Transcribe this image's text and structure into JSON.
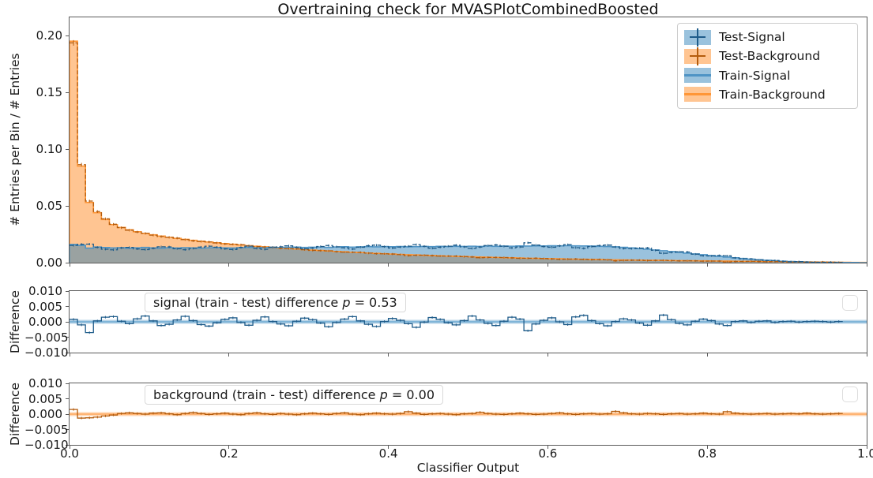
{
  "palette": {
    "blue": "#1f77b4",
    "orange": "#ff7f0e",
    "blue_fill": "rgba(31,119,180,0.45)",
    "orange_fill": "rgba(255,127,14,0.45)",
    "train_signal_edge": "#4f94c5",
    "train_background_edge": "#ff9636",
    "test_signal": "#1f5c8a",
    "test_background": "#b45c0d",
    "band_blue": "rgba(31,119,180,0.32)",
    "band_blue_line": "#6fabd4",
    "band_orange": "rgba(255,127,14,0.32)",
    "band_orange_line": "#ffa95e",
    "spine": "#5b5b5b",
    "text": "#1a1a1a"
  },
  "chart_data": {
    "type": "histogram",
    "title": "Overtraining check for MVASPlotCombinedBoosted",
    "xlabel": "Classifier Output",
    "bins": {
      "count": 100,
      "range": [
        0,
        1
      ]
    },
    "x_axis": {
      "tick_labels": [
        "0.0",
        "0.2",
        "0.4",
        "0.6",
        "0.8",
        "1.0"
      ],
      "tick_values": [
        0,
        0.2,
        0.4,
        0.6,
        0.8,
        1.0
      ],
      "lim": [
        0,
        1
      ]
    },
    "main": {
      "ylabel": "# Entries per Bin / # Entries",
      "ylim": [
        0,
        0.2159
      ],
      "ytick_labels": [
        "0.00",
        "0.05",
        "0.10",
        "0.15",
        "0.20"
      ],
      "ytick_values": [
        0,
        0.05,
        0.1,
        0.15,
        0.2
      ],
      "grid": false
    },
    "legend": {
      "position": "upper right",
      "items": [
        {
          "label": "Test-Signal",
          "swatch": "errorbar",
          "color": "blue"
        },
        {
          "label": "Test-Background",
          "swatch": "errorbar",
          "color": "orange"
        },
        {
          "label": "Train-Signal",
          "swatch": "band",
          "color": "blue"
        },
        {
          "label": "Train-Background",
          "swatch": "band",
          "color": "orange"
        }
      ]
    },
    "series": {
      "train_signal": [
        0.016,
        0.0152,
        0.0128,
        0.0138,
        0.0133,
        0.013,
        0.0132,
        0.0128,
        0.0131,
        0.0134,
        0.013,
        0.0128,
        0.0131,
        0.0129,
        0.0132,
        0.013,
        0.0128,
        0.0131,
        0.0133,
        0.013,
        0.0129,
        0.0132,
        0.0134,
        0.0131,
        0.0133,
        0.0136,
        0.0133,
        0.0135,
        0.0137,
        0.0134,
        0.0136,
        0.0138,
        0.0135,
        0.0138,
        0.014,
        0.0137,
        0.0139,
        0.0141,
        0.0139,
        0.0142,
        0.014,
        0.0142,
        0.0139,
        0.0141,
        0.0143,
        0.0141,
        0.0144,
        0.0142,
        0.0144,
        0.0143,
        0.0145,
        0.0143,
        0.0146,
        0.0144,
        0.0146,
        0.0145,
        0.0147,
        0.0146,
        0.0148,
        0.0147,
        0.0149,
        0.0148,
        0.015,
        0.0148,
        0.0147,
        0.0146,
        0.0144,
        0.0142,
        0.0139,
        0.0135,
        0.013,
        0.0124,
        0.0118,
        0.0112,
        0.0105,
        0.0098,
        0.0091,
        0.0084,
        0.0077,
        0.007,
        0.0063,
        0.0056,
        0.0049,
        0.0043,
        0.0037,
        0.0031,
        0.0026,
        0.0021,
        0.0017,
        0.0013,
        0.001,
        0.0008,
        0.0006,
        0.0004,
        0.0003,
        0.0002,
        0.0002,
        0.0001,
        0.0001,
        0.0
      ],
      "train_background": [
        0.195,
        0.085,
        0.053,
        0.044,
        0.038,
        0.0335,
        0.031,
        0.029,
        0.0272,
        0.0258,
        0.0245,
        0.0234,
        0.0224,
        0.0214,
        0.0205,
        0.0197,
        0.0189,
        0.0182,
        0.0175,
        0.0168,
        0.0162,
        0.0156,
        0.015,
        0.0145,
        0.0139,
        0.0134,
        0.0129,
        0.0124,
        0.012,
        0.0115,
        0.0111,
        0.0107,
        0.0103,
        0.0099,
        0.0096,
        0.0092,
        0.0089,
        0.0085,
        0.0082,
        0.0079,
        0.0076,
        0.0073,
        0.007,
        0.0068,
        0.0065,
        0.0063,
        0.006,
        0.0058,
        0.0056,
        0.0054,
        0.0052,
        0.005,
        0.0048,
        0.0046,
        0.0044,
        0.0043,
        0.0041,
        0.0039,
        0.0038,
        0.0036,
        0.0035,
        0.0034,
        0.0032,
        0.0031,
        0.003,
        0.0029,
        0.0028,
        0.0026,
        0.0025,
        0.0024,
        0.0023,
        0.0022,
        0.0021,
        0.0021,
        0.002,
        0.0019,
        0.0018,
        0.0017,
        0.0017,
        0.0016,
        0.0015,
        0.0014,
        0.0014,
        0.0013,
        0.0012,
        0.0012,
        0.0011,
        0.001,
        0.001,
        0.0009,
        0.0008,
        0.0008,
        0.0007,
        0.0006,
        0.0006,
        0.0005,
        0.0004,
        0.0003,
        0.0002,
        0.0002
      ],
      "test_signal": [
        0.0152,
        0.0162,
        0.0163,
        0.0135,
        0.0118,
        0.0113,
        0.013,
        0.0134,
        0.0121,
        0.0115,
        0.0127,
        0.014,
        0.0139,
        0.0123,
        0.0114,
        0.0126,
        0.0137,
        0.0145,
        0.0136,
        0.0122,
        0.0116,
        0.0134,
        0.0145,
        0.0126,
        0.0117,
        0.0135,
        0.014,
        0.0148,
        0.0135,
        0.0122,
        0.0129,
        0.0142,
        0.0151,
        0.014,
        0.0131,
        0.012,
        0.0136,
        0.0149,
        0.0154,
        0.0141,
        0.0129,
        0.0137,
        0.0145,
        0.0159,
        0.0144,
        0.0127,
        0.0136,
        0.0145,
        0.0154,
        0.0139,
        0.0126,
        0.0137,
        0.0151,
        0.0156,
        0.0144,
        0.013,
        0.0138,
        0.0175,
        0.0155,
        0.0142,
        0.0136,
        0.0148,
        0.0159,
        0.0132,
        0.0126,
        0.0142,
        0.015,
        0.0155,
        0.0138,
        0.0125,
        0.0124,
        0.0128,
        0.0129,
        0.0109,
        0.0083,
        0.0091,
        0.0096,
        0.0094,
        0.0075,
        0.0061,
        0.0059,
        0.0063,
        0.0061,
        0.0042,
        0.0034,
        0.0033,
        0.0024,
        0.0018,
        0.0019,
        0.0012,
        0.0008,
        0.0009,
        0.0005,
        0.0002,
        0.0002,
        0.0003,
        0.0001,
        0.0,
        0.0001,
        0.0
      ],
      "test_background": [
        0.1935,
        0.0863,
        0.0542,
        0.045,
        0.0386,
        0.0338,
        0.0308,
        0.0286,
        0.027,
        0.0258,
        0.0242,
        0.023,
        0.0223,
        0.0216,
        0.0203,
        0.0192,
        0.0187,
        0.0183,
        0.0174,
        0.0165,
        0.0162,
        0.0158,
        0.0148,
        0.0141,
        0.0138,
        0.0135,
        0.0127,
        0.0124,
        0.0122,
        0.0114,
        0.0108,
        0.0106,
        0.0104,
        0.0097,
        0.0092,
        0.0092,
        0.0091,
        0.0084,
        0.0079,
        0.0078,
        0.0076,
        0.0071,
        0.0062,
        0.0065,
        0.0066,
        0.0062,
        0.0058,
        0.0058,
        0.0058,
        0.0053,
        0.005,
        0.0044,
        0.0046,
        0.0046,
        0.0045,
        0.0042,
        0.0038,
        0.0038,
        0.0039,
        0.0036,
        0.0033,
        0.003,
        0.0031,
        0.0032,
        0.0029,
        0.0027,
        0.0028,
        0.0025,
        0.0016,
        0.002,
        0.0022,
        0.0022,
        0.0019,
        0.002,
        0.0021,
        0.0018,
        0.0016,
        0.0017,
        0.0016,
        0.0013,
        0.0014,
        0.0014,
        0.0006,
        0.001,
        0.0011,
        0.0012,
        0.001,
        0.0008,
        0.001,
        0.0008,
        0.0006,
        0.0007,
        0.0004,
        0.0005,
        0.0006,
        0.0004,
        0.0002,
        0.0002,
        0.0002,
        0.0001
      ]
    },
    "diff_panels": [
      {
        "id": "signal",
        "ylabel": "Difference",
        "ylim": [
          -0.01,
          0.01
        ],
        "ytick_labels": [
          "0.010",
          "0.005",
          "0.000",
          "−0.005",
          "−0.010"
        ],
        "ytick_values": [
          0.01,
          0.005,
          0.0,
          -0.005,
          -0.01
        ],
        "annotation": {
          "text": "signal (train - test) difference",
          "p_symbol": "p",
          "p_value": "= 0.53"
        },
        "values": [
          0.0008,
          -0.001,
          -0.0035,
          0.0003,
          0.0015,
          0.0017,
          0.0002,
          -0.0006,
          0.001,
          0.0019,
          0.0003,
          -0.0012,
          -0.0008,
          0.0006,
          0.0018,
          0.0004,
          -0.0009,
          -0.0014,
          -0.0003,
          0.0008,
          0.0013,
          -0.0002,
          -0.0011,
          0.0005,
          0.0016,
          0.0001,
          -0.0007,
          -0.0013,
          0.0002,
          0.0012,
          0.0007,
          -0.0004,
          -0.0016,
          -0.0002,
          0.0009,
          0.0017,
          0.0003,
          -0.0008,
          -0.0015,
          0.0001,
          0.0011,
          0.0005,
          -0.0006,
          -0.0018,
          -0.0001,
          0.0014,
          0.0008,
          -0.0003,
          -0.001,
          0.0004,
          0.0019,
          0.0006,
          -0.0005,
          -0.0012,
          0.0002,
          0.0015,
          0.0009,
          -0.0029,
          -0.0007,
          0.0005,
          0.0013,
          0.0,
          -0.0009,
          0.0016,
          0.0021,
          0.0004,
          -0.0006,
          -0.0013,
          0.0001,
          0.001,
          0.0006,
          -0.0004,
          -0.0011,
          0.0003,
          0.0022,
          0.0007,
          -0.0005,
          -0.001,
          0.0002,
          0.0009,
          0.0004,
          -0.0007,
          -0.0012,
          0.0001,
          0.0003,
          -0.0002,
          0.0002,
          0.0003,
          -0.0002,
          0.0001,
          0.0002,
          -0.0001,
          0.0001,
          0.0002,
          0.0001,
          -0.0001,
          0.0001,
          0.0001,
          0.0,
          0.0
        ]
      },
      {
        "id": "background",
        "ylabel": "Difference",
        "ylim": [
          -0.01,
          0.01
        ],
        "ytick_labels": [
          "0.010",
          "0.005",
          "0.000",
          "−0.005",
          "−0.010"
        ],
        "ytick_values": [
          0.01,
          0.005,
          0.0,
          -0.005,
          -0.01
        ],
        "annotation": {
          "text": "background (train - test) difference",
          "p_symbol": "p",
          "p_value": "= 0.00"
        },
        "values": [
          0.0015,
          -0.0013,
          -0.0012,
          -0.001,
          -0.0006,
          -0.0003,
          0.0002,
          0.0004,
          0.0002,
          0.0,
          0.0003,
          0.0004,
          0.0001,
          -0.0002,
          0.0002,
          0.0005,
          0.0002,
          -0.0001,
          0.0001,
          0.0003,
          0.0,
          -0.0002,
          0.0002,
          0.0004,
          0.0001,
          -0.0001,
          0.0002,
          0.0,
          -0.0002,
          0.0001,
          0.0003,
          0.0001,
          -0.0001,
          0.0002,
          0.0004,
          0.0,
          -0.0002,
          0.0001,
          0.0003,
          0.0001,
          0.0,
          0.0002,
          0.0008,
          0.0003,
          -0.0001,
          0.0001,
          0.0002,
          0.0,
          -0.0002,
          0.0001,
          0.0002,
          0.0006,
          0.0002,
          0.0,
          -0.0001,
          0.0001,
          0.0003,
          0.0001,
          -0.0001,
          0.0,
          0.0002,
          0.0004,
          0.0001,
          -0.0001,
          0.0001,
          0.0002,
          0.0,
          0.0001,
          0.0009,
          0.0004,
          0.0001,
          0.0,
          0.0002,
          0.0001,
          -0.0001,
          0.0001,
          0.0002,
          0.0,
          0.0001,
          0.0003,
          0.0001,
          0.0,
          0.0008,
          0.0003,
          0.0001,
          0.0,
          0.0001,
          0.0002,
          0.0,
          0.0001,
          0.0002,
          0.0001,
          0.0003,
          0.0001,
          0.0,
          0.0001,
          0.0002,
          0.0001,
          0.0,
          0.0001
        ]
      }
    ]
  }
}
